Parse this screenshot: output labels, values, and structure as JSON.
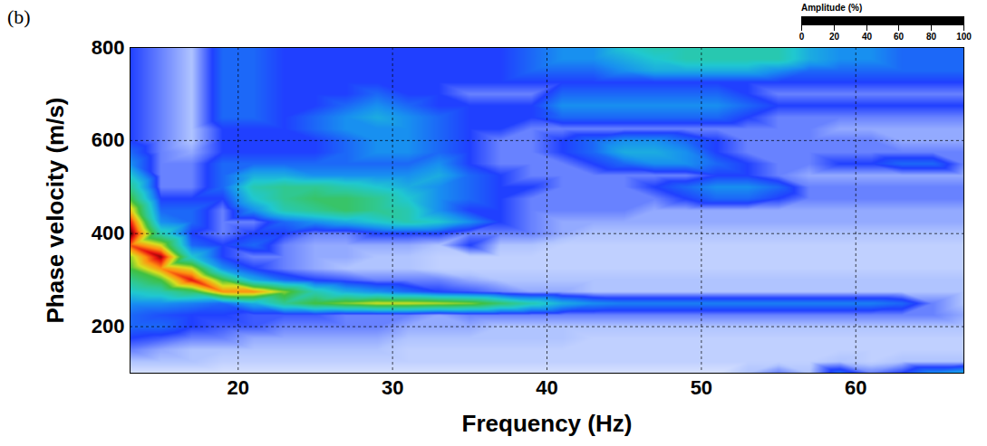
{
  "chart_data": {
    "type": "heatmap",
    "panel": "(b)",
    "xlabel": "Frequency (Hz)",
    "ylabel": "Phase velocity (m/s)",
    "xlim": [
      13,
      67
    ],
    "ylim": [
      100,
      800
    ],
    "xticks": [
      20,
      30,
      40,
      50,
      60
    ],
    "yticks": [
      200,
      400,
      600,
      800
    ],
    "grid": true,
    "x": [
      13,
      15,
      17,
      19,
      21,
      23,
      25,
      27,
      29,
      31,
      33,
      35,
      37,
      39,
      41,
      43,
      45,
      47,
      49,
      51,
      53,
      55,
      57,
      59,
      61,
      63,
      65,
      67
    ],
    "y": [
      100,
      125,
      150,
      175,
      200,
      225,
      250,
      275,
      300,
      325,
      350,
      375,
      400,
      425,
      450,
      475,
      500,
      525,
      550,
      575,
      600,
      625,
      650,
      675,
      700,
      725,
      750,
      775,
      800
    ],
    "amplitude": [
      [
        5,
        5,
        5,
        5,
        5,
        5,
        5,
        5,
        5,
        5,
        5,
        5,
        5,
        5,
        5,
        5,
        5,
        5,
        5,
        5,
        10,
        15,
        10,
        25,
        15,
        20,
        30,
        35
      ],
      [
        10,
        10,
        10,
        8,
        8,
        8,
        8,
        8,
        8,
        8,
        8,
        8,
        8,
        8,
        8,
        8,
        8,
        8,
        8,
        8,
        8,
        8,
        8,
        10,
        8,
        10,
        10,
        10
      ],
      [
        15,
        12,
        10,
        10,
        10,
        10,
        10,
        10,
        10,
        8,
        8,
        8,
        8,
        8,
        8,
        8,
        8,
        8,
        8,
        8,
        8,
        8,
        8,
        8,
        8,
        8,
        8,
        8
      ],
      [
        20,
        18,
        15,
        15,
        12,
        12,
        12,
        12,
        12,
        10,
        10,
        10,
        10,
        10,
        10,
        8,
        8,
        8,
        8,
        8,
        8,
        8,
        8,
        8,
        8,
        8,
        8,
        8
      ],
      [
        25,
        25,
        20,
        18,
        18,
        15,
        15,
        15,
        15,
        12,
        12,
        12,
        10,
        10,
        10,
        10,
        10,
        10,
        10,
        10,
        10,
        10,
        10,
        10,
        10,
        10,
        10,
        10
      ],
      [
        25,
        22,
        20,
        20,
        18,
        18,
        18,
        15,
        15,
        15,
        12,
        15,
        15,
        15,
        15,
        15,
        15,
        15,
        15,
        15,
        15,
        15,
        15,
        15,
        15,
        15,
        15,
        12
      ],
      [
        30,
        30,
        28,
        25,
        35,
        50,
        60,
        65,
        70,
        70,
        68,
        65,
        55,
        45,
        35,
        30,
        28,
        28,
        28,
        28,
        28,
        28,
        28,
        28,
        28,
        25,
        15,
        10
      ],
      [
        40,
        45,
        55,
        80,
        80,
        65,
        45,
        35,
        30,
        25,
        20,
        18,
        15,
        12,
        12,
        10,
        10,
        10,
        10,
        10,
        10,
        10,
        10,
        10,
        10,
        10,
        10,
        10
      ],
      [
        50,
        60,
        90,
        60,
        35,
        25,
        20,
        18,
        15,
        15,
        15,
        12,
        10,
        10,
        10,
        10,
        10,
        10,
        10,
        10,
        10,
        10,
        10,
        10,
        10,
        10,
        10,
        10
      ],
      [
        60,
        80,
        70,
        30,
        20,
        15,
        12,
        10,
        10,
        10,
        8,
        8,
        8,
        8,
        8,
        8,
        8,
        8,
        8,
        8,
        8,
        8,
        8,
        8,
        8,
        8,
        8,
        8
      ],
      [
        65,
        95,
        40,
        20,
        15,
        15,
        12,
        12,
        10,
        10,
        8,
        8,
        8,
        8,
        8,
        8,
        8,
        8,
        8,
        8,
        8,
        8,
        8,
        8,
        8,
        8,
        8,
        8
      ],
      [
        85,
        70,
        25,
        20,
        25,
        15,
        12,
        12,
        12,
        12,
        10,
        20,
        10,
        10,
        8,
        8,
        8,
        8,
        8,
        8,
        8,
        8,
        8,
        8,
        8,
        8,
        8,
        8
      ],
      [
        100,
        45,
        20,
        15,
        20,
        20,
        15,
        15,
        20,
        20,
        20,
        15,
        15,
        15,
        12,
        10,
        10,
        10,
        10,
        10,
        10,
        10,
        10,
        10,
        10,
        10,
        10,
        10
      ],
      [
        90,
        30,
        25,
        15,
        15,
        25,
        30,
        35,
        40,
        45,
        40,
        30,
        20,
        15,
        12,
        12,
        12,
        12,
        12,
        12,
        12,
        12,
        12,
        12,
        12,
        12,
        12,
        12
      ],
      [
        75,
        25,
        25,
        15,
        30,
        45,
        50,
        55,
        50,
        45,
        30,
        20,
        20,
        15,
        15,
        15,
        15,
        12,
        12,
        12,
        12,
        12,
        12,
        12,
        12,
        12,
        12,
        12
      ],
      [
        60,
        20,
        20,
        20,
        40,
        50,
        55,
        55,
        50,
        40,
        30,
        25,
        20,
        15,
        15,
        15,
        15,
        15,
        20,
        25,
        25,
        20,
        15,
        15,
        15,
        15,
        15,
        15
      ],
      [
        50,
        15,
        15,
        25,
        45,
        50,
        50,
        45,
        40,
        35,
        30,
        25,
        20,
        20,
        15,
        15,
        15,
        20,
        25,
        30,
        30,
        25,
        15,
        15,
        15,
        15,
        15,
        15
      ],
      [
        40,
        15,
        15,
        25,
        35,
        35,
        30,
        30,
        30,
        30,
        35,
        25,
        20,
        15,
        15,
        15,
        15,
        15,
        15,
        20,
        20,
        15,
        12,
        12,
        12,
        12,
        12,
        12
      ],
      [
        30,
        15,
        15,
        25,
        25,
        25,
        25,
        25,
        25,
        25,
        30,
        20,
        15,
        15,
        15,
        20,
        25,
        30,
        30,
        25,
        20,
        15,
        15,
        20,
        20,
        25,
        25,
        15
      ],
      [
        25,
        15,
        12,
        20,
        20,
        20,
        20,
        25,
        30,
        30,
        25,
        20,
        15,
        15,
        20,
        25,
        35,
        35,
        30,
        20,
        15,
        15,
        15,
        15,
        15,
        15,
        15,
        15
      ],
      [
        20,
        15,
        10,
        20,
        20,
        20,
        20,
        25,
        30,
        30,
        25,
        20,
        15,
        15,
        20,
        25,
        30,
        30,
        25,
        20,
        15,
        15,
        15,
        15,
        15,
        12,
        12,
        12
      ],
      [
        20,
        15,
        10,
        20,
        20,
        20,
        25,
        30,
        30,
        30,
        25,
        20,
        20,
        15,
        15,
        15,
        15,
        15,
        15,
        15,
        15,
        15,
        15,
        12,
        12,
        12,
        12,
        12
      ],
      [
        20,
        15,
        10,
        25,
        25,
        20,
        25,
        30,
        35,
        30,
        25,
        20,
        20,
        20,
        25,
        25,
        25,
        25,
        25,
        25,
        20,
        15,
        15,
        15,
        15,
        15,
        15,
        15
      ],
      [
        20,
        15,
        10,
        25,
        25,
        20,
        20,
        25,
        30,
        25,
        20,
        20,
        20,
        20,
        30,
        30,
        30,
        30,
        30,
        30,
        25,
        20,
        20,
        20,
        20,
        20,
        20,
        20
      ],
      [
        20,
        15,
        10,
        25,
        25,
        20,
        20,
        20,
        25,
        20,
        20,
        15,
        15,
        15,
        25,
        25,
        25,
        25,
        25,
        25,
        20,
        15,
        15,
        15,
        15,
        15,
        15,
        15
      ],
      [
        20,
        15,
        10,
        25,
        25,
        20,
        20,
        20,
        20,
        20,
        20,
        20,
        20,
        20,
        20,
        20,
        20,
        20,
        20,
        20,
        20,
        20,
        20,
        20,
        20,
        20,
        20,
        20
      ],
      [
        20,
        15,
        10,
        25,
        25,
        20,
        20,
        20,
        20,
        20,
        20,
        20,
        20,
        25,
        25,
        25,
        30,
        35,
        35,
        35,
        35,
        30,
        25,
        25,
        25,
        25,
        25,
        25
      ],
      [
        20,
        15,
        10,
        25,
        25,
        20,
        20,
        20,
        20,
        20,
        20,
        20,
        20,
        25,
        30,
        30,
        35,
        40,
        45,
        45,
        45,
        45,
        35,
        30,
        30,
        25,
        25,
        25
      ],
      [
        20,
        15,
        10,
        25,
        25,
        20,
        20,
        20,
        20,
        20,
        20,
        20,
        20,
        25,
        30,
        30,
        40,
        45,
        45,
        45,
        45,
        45,
        35,
        30,
        30,
        25,
        25,
        25
      ]
    ],
    "colorbar": {
      "range": [
        0,
        100
      ],
      "ticks": [
        0,
        20,
        40,
        60,
        80,
        100
      ],
      "label": "Amplitude (%)"
    }
  }
}
